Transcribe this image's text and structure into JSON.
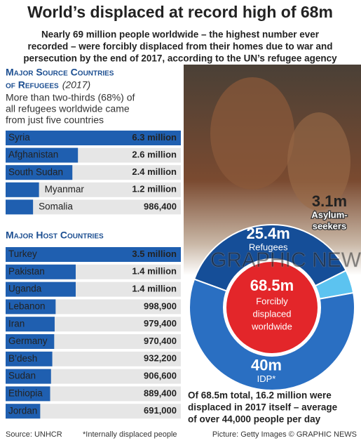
{
  "title": "World’s displaced at record high of 68m",
  "subtitle": [
    "Nearly 69 million people worldwide – the highest number ever",
    "recorded – were forcibly displaced from their homes due to war and",
    "persecution by the end of 2017, according to the UN’s refugee agency"
  ],
  "watermark": "GRAPHIC NEWS",
  "footer": {
    "source": "Source: UNHCR",
    "note": "*Internally displaced people",
    "credit": "Picture: Getty Images © GRAPHIC NEWS"
  },
  "chart_data": [
    {
      "type": "bar",
      "title": [
        "Major Source Countries",
        "of Refugees"
      ],
      "title_note": "(2017)",
      "subtitle": [
        "More than two-thirds (68%) of",
        "all refugees worldwide came",
        "from just five countries"
      ],
      "categories": [
        "Syria",
        "Afghanistan",
        "South Sudan",
        "Myanmar",
        "Somalia"
      ],
      "values": [
        6300000,
        2600000,
        2400000,
        1200000,
        986400
      ],
      "value_labels": [
        "6.3 million",
        "2.6 million",
        "2.4 million",
        "1.2 million",
        "986,400"
      ],
      "xlim": [
        0,
        6300000
      ],
      "color": "#1f5fb0"
    },
    {
      "type": "bar",
      "title": [
        "Major Host Countries"
      ],
      "categories": [
        "Turkey",
        "Pakistan",
        "Uganda",
        "Lebanon",
        "Iran",
        "Germany",
        "B’desh",
        "Sudan",
        "Ethiopia",
        "Jordan"
      ],
      "values": [
        3500000,
        1400000,
        1400000,
        998900,
        979400,
        970400,
        932200,
        906600,
        889400,
        691000
      ],
      "value_labels": [
        "3.5 million",
        "1.4 million",
        "1.4 million",
        "998,900",
        "979,400",
        "970,400",
        "932,200",
        "906,600",
        "889,400",
        "691,000"
      ],
      "xlim": [
        0,
        3500000
      ],
      "color": "#1f5fb0"
    },
    {
      "type": "donut",
      "categories": [
        [
          "Refugees"
        ],
        [
          "Asylum-",
          "seekers"
        ],
        [
          "IDP*"
        ]
      ],
      "values": [
        25.4,
        3.1,
        40
      ],
      "value_labels": [
        "25.4m",
        "3.1m",
        "40m"
      ],
      "colors": [
        "#154e98",
        "#5cc3f0",
        "#2a6fc2"
      ],
      "total": 68.5,
      "total_label": "68.5m",
      "total_color": "#e3262a",
      "center_label": [
        "Forcibly",
        "displaced",
        "worldwide"
      ],
      "note": [
        "Of 68.5m total, 16.2 million were",
        "displaced in 2017 itself – average",
        "of over 44,000 people per day"
      ]
    }
  ]
}
